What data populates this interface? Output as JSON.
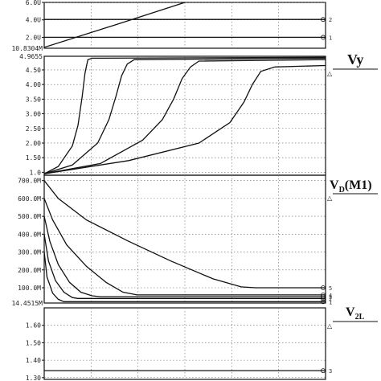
{
  "chart_data": [
    {
      "type": "line",
      "panel": "top",
      "y_ticks": [
        "6.0U",
        "4.0U",
        "2.0U"
      ],
      "y_ticks_values": [
        6.0,
        4.0,
        2.0
      ],
      "bottom_label": "10.8304M",
      "ylim": [
        0.75,
        6.0
      ],
      "xlim": [
        0,
        10
      ],
      "grid": true,
      "series": [
        {
          "marker": "1",
          "x": [
            0,
            10
          ],
          "y": [
            2.0,
            2.0
          ]
        },
        {
          "marker": "2",
          "x": [
            0,
            10
          ],
          "y": [
            4.05,
            4.05
          ]
        },
        {
          "marker": "",
          "x": [
            0,
            2.5,
            5.0
          ],
          "y": [
            0.85,
            3.4,
            6.0
          ]
        }
      ]
    },
    {
      "type": "line",
      "panel": "vy",
      "signal": "Vy",
      "top_label": "4.9655",
      "y_ticks": [
        "4.50",
        "4.00",
        "3.50",
        "3.00",
        "2.50",
        "2.00",
        "1.50",
        "1.0"
      ],
      "y_ticks_values": [
        4.5,
        4.0,
        3.5,
        3.0,
        2.5,
        2.0,
        1.5,
        1.0
      ],
      "ylim": [
        0.9,
        4.9655
      ],
      "xlim": [
        0,
        10
      ],
      "grid": true,
      "series": [
        {
          "marker": "",
          "x": [
            0,
            0.5,
            1.0,
            1.2,
            1.35,
            1.45,
            1.55,
            1.7,
            10
          ],
          "y": [
            0.95,
            1.2,
            1.9,
            2.6,
            3.6,
            4.4,
            4.85,
            4.9,
            4.93
          ]
        },
        {
          "marker": "",
          "x": [
            0,
            1.0,
            1.9,
            2.3,
            2.55,
            2.75,
            2.95,
            3.2,
            10
          ],
          "y": [
            0.95,
            1.25,
            2.0,
            2.8,
            3.6,
            4.3,
            4.7,
            4.85,
            4.9
          ]
        },
        {
          "marker": "",
          "x": [
            0,
            2.0,
            3.5,
            4.2,
            4.6,
            4.9,
            5.2,
            5.5,
            10
          ],
          "y": [
            0.95,
            1.3,
            2.1,
            2.8,
            3.5,
            4.2,
            4.6,
            4.8,
            4.85
          ]
        },
        {
          "marker": "",
          "x": [
            0,
            3.0,
            5.5,
            6.6,
            7.1,
            7.4,
            7.7,
            8.2,
            10
          ],
          "y": [
            0.95,
            1.4,
            2.0,
            2.7,
            3.4,
            4.0,
            4.45,
            4.6,
            4.65
          ]
        }
      ]
    },
    {
      "type": "line",
      "panel": "vd",
      "signal": "VD(M1)",
      "y_ticks": [
        "700.0M",
        "600.0M",
        "500.0M",
        "400.0M",
        "300.0M",
        "200.0M",
        "100.0M"
      ],
      "y_ticks_values": [
        700,
        600,
        500,
        400,
        300,
        200,
        100
      ],
      "bottom_label": "14.4515M",
      "ylim": [
        14.4515,
        730
      ],
      "xlim": [
        0,
        10
      ],
      "grid": true,
      "series": [
        {
          "marker": "5",
          "x": [
            0,
            0.5,
            1.5,
            3.0,
            4.5,
            6.0,
            7.0,
            7.5,
            10
          ],
          "y": [
            700,
            600,
            480,
            360,
            250,
            150,
            105,
            100,
            100
          ]
        },
        {
          "marker": "4",
          "x": [
            0,
            0.3,
            0.8,
            1.5,
            2.2,
            2.8,
            3.3,
            10
          ],
          "y": [
            600,
            480,
            340,
            220,
            130,
            75,
            60,
            60
          ]
        },
        {
          "marker": "3",
          "x": [
            0,
            0.2,
            0.5,
            0.9,
            1.3,
            1.7,
            2.0,
            10
          ],
          "y": [
            500,
            360,
            230,
            130,
            75,
            55,
            50,
            50
          ]
        },
        {
          "marker": "2",
          "x": [
            0,
            0.15,
            0.4,
            0.7,
            1.0,
            1.2,
            10
          ],
          "y": [
            400,
            250,
            140,
            75,
            45,
            40,
            40
          ]
        },
        {
          "marker": "1",
          "x": [
            0,
            0.1,
            0.3,
            0.5,
            0.7,
            10
          ],
          "y": [
            300,
            160,
            70,
            35,
            22,
            22
          ]
        }
      ]
    },
    {
      "type": "line",
      "panel": "v2l",
      "signal": "V2L",
      "y_ticks": [
        "1.60",
        "1.50",
        "1.40",
        "1.30"
      ],
      "y_ticks_values": [
        1.6,
        1.5,
        1.4,
        1.3
      ],
      "ylim": [
        1.29,
        1.7
      ],
      "xlim": [
        0,
        10
      ],
      "grid": true,
      "series": [
        {
          "marker": "3",
          "x": [
            0,
            10
          ],
          "y": [
            1.34,
            1.34
          ]
        }
      ]
    }
  ],
  "signals": {
    "vy": {
      "main": "Vy"
    },
    "vd": {
      "main": "V",
      "sub": "D",
      "rest": "(M1)"
    },
    "v2l": {
      "main": "V",
      "sub": "2L"
    }
  },
  "colors": {
    "trace": "#111111",
    "grid": "#666666",
    "background": "#ffffff"
  }
}
